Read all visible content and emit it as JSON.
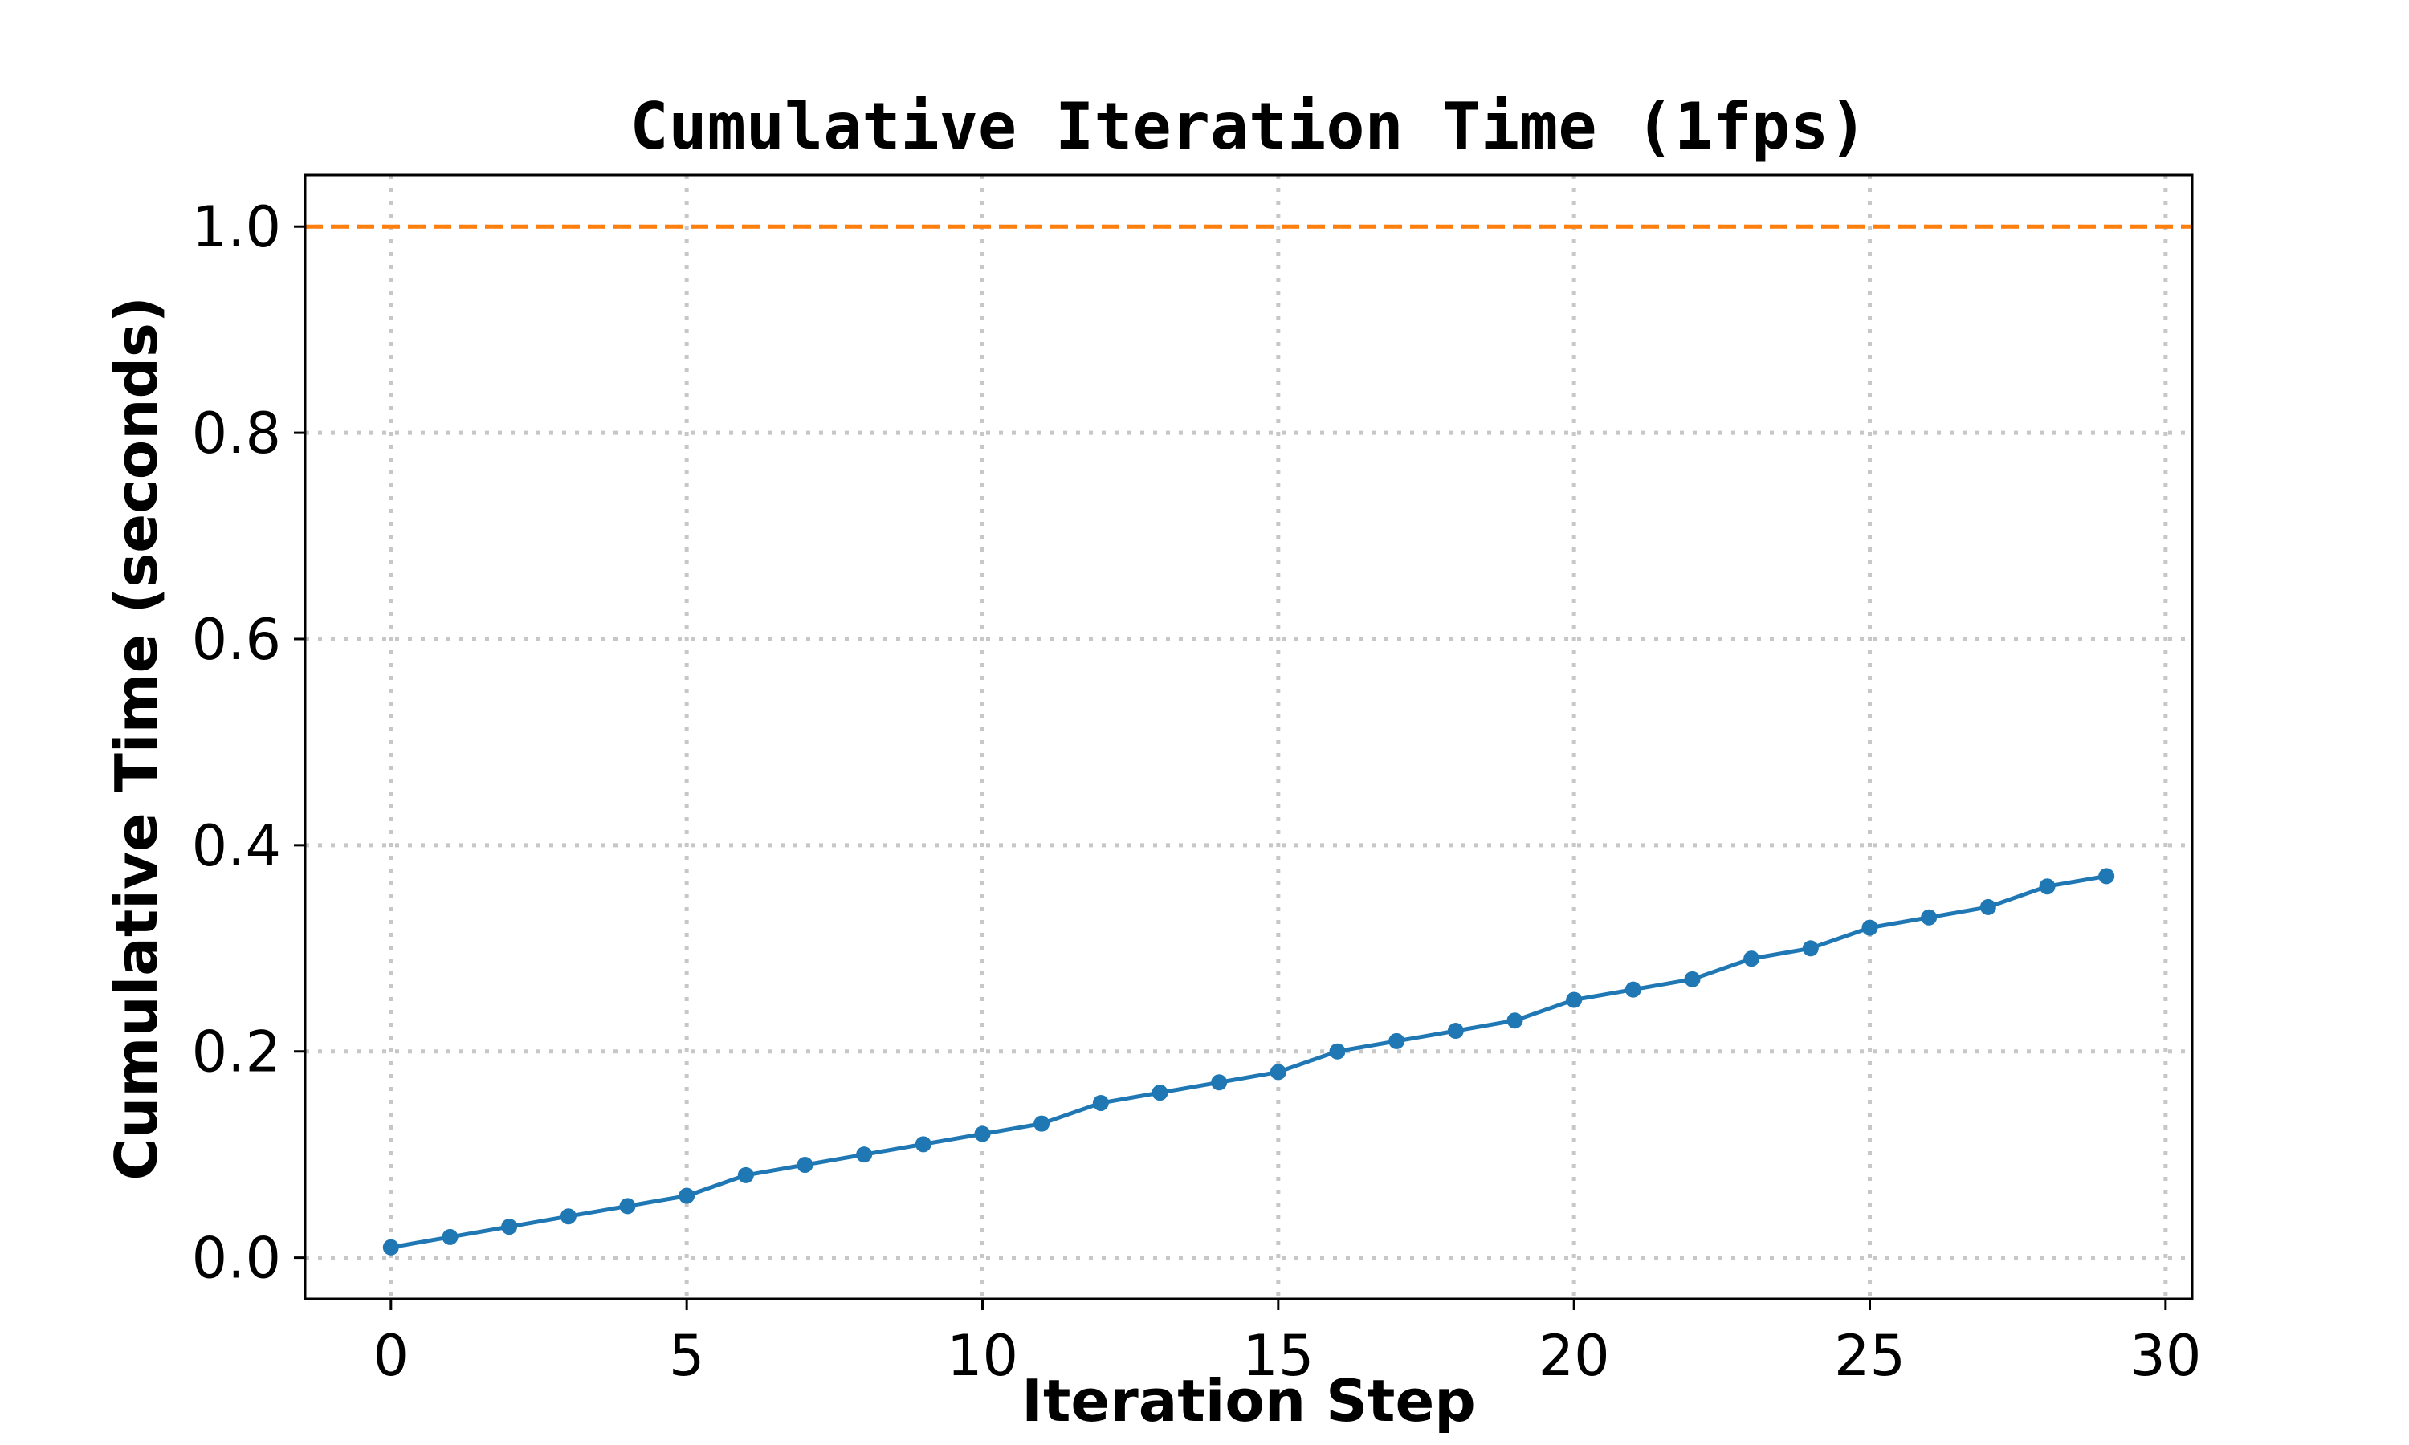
{
  "chart_data": {
    "type": "line",
    "title": "Cumulative Iteration Time (1fps)",
    "xlabel": "Iteration Step",
    "ylabel": "Cumulative Time (seconds)",
    "xlim": [
      -1.45,
      30.45
    ],
    "ylim": [
      -0.04,
      1.05
    ],
    "x_ticks": [
      0,
      5,
      10,
      15,
      20,
      25,
      30
    ],
    "x_tick_labels": [
      "0",
      "5",
      "10",
      "15",
      "20",
      "25",
      "30"
    ],
    "y_ticks": [
      0.0,
      0.2,
      0.4,
      0.6,
      0.8,
      1.0
    ],
    "y_tick_labels": [
      "0.0",
      "0.2",
      "0.4",
      "0.6",
      "0.8",
      "1.0"
    ],
    "grid": true,
    "grid_style": "dotted",
    "legend": "none",
    "series": [
      {
        "color": "#1f77b4",
        "marker": "circle",
        "x": [
          0,
          1,
          2,
          3,
          4,
          5,
          6,
          7,
          8,
          9,
          10,
          11,
          12,
          13,
          14,
          15,
          16,
          17,
          18,
          19,
          20,
          21,
          22,
          23,
          24,
          25,
          26,
          27,
          28,
          29
        ],
        "y": [
          0.01,
          0.02,
          0.03,
          0.04,
          0.05,
          0.06,
          0.08,
          0.09,
          0.1,
          0.11,
          0.12,
          0.13,
          0.15,
          0.16,
          0.17,
          0.18,
          0.2,
          0.21,
          0.22,
          0.23,
          0.25,
          0.26,
          0.27,
          0.29,
          0.3,
          0.32,
          0.33,
          0.34,
          0.36,
          0.37
        ]
      }
    ],
    "reference_line": {
      "y": 1.0,
      "color": "#ff7f0e",
      "style": "dashed"
    }
  }
}
